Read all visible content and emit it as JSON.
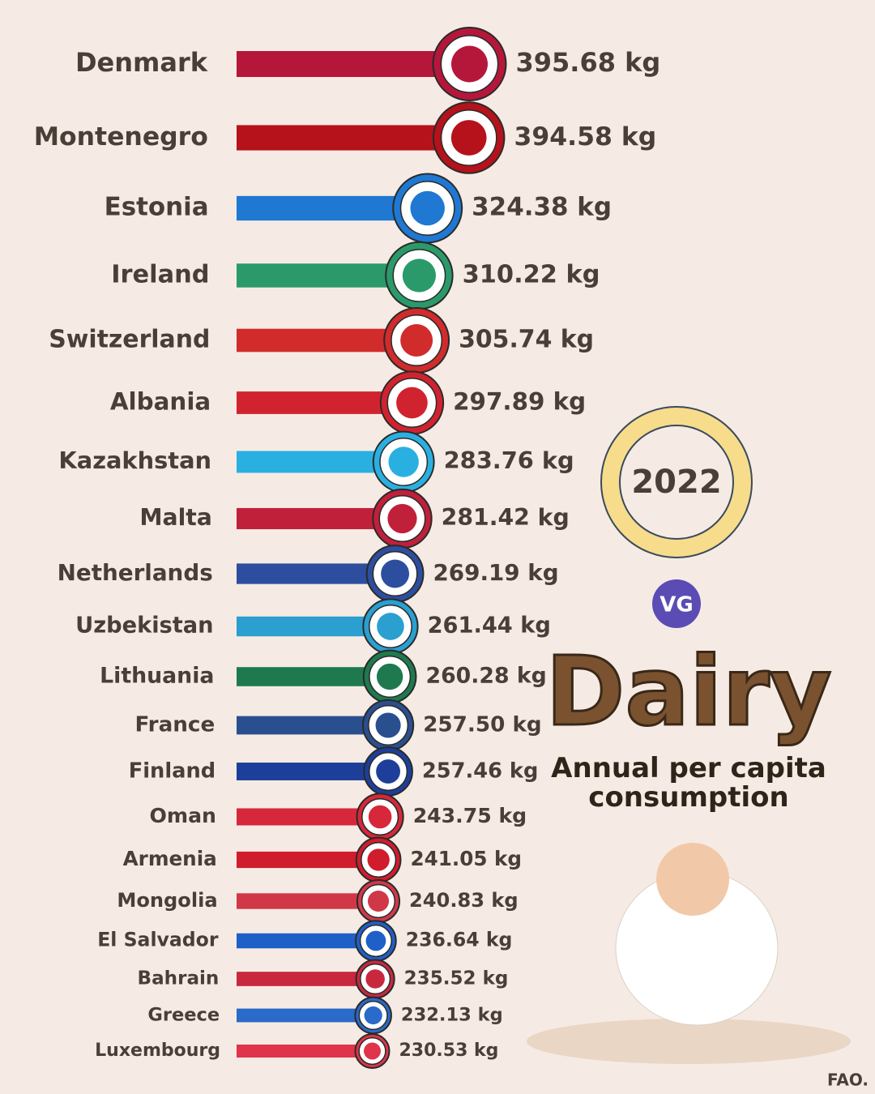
{
  "chart_data": {
    "type": "bar",
    "orientation": "horizontal",
    "title": "Dairy",
    "subtitle": "Annual per capita consumption",
    "year": "2022",
    "logo": "VG",
    "source": "FAO.",
    "categories": [
      "Denmark",
      "Montenegro",
      "Estonia",
      "Ireland",
      "Switzerland",
      "Albania",
      "Kazakhstan",
      "Malta",
      "Netherlands",
      "Uzbekistan",
      "Lithuania",
      "France",
      "Finland",
      "Oman",
      "Armenia",
      "Mongolia",
      "El Salvador",
      "Bahrain",
      "Greece",
      "Luxembourg"
    ],
    "values": [
      395.68,
      394.58,
      324.38,
      310.22,
      305.74,
      297.89,
      283.76,
      281.42,
      269.19,
      261.44,
      260.28,
      257.5,
      257.46,
      243.75,
      241.05,
      240.83,
      236.64,
      235.52,
      232.13,
      230.53
    ],
    "value_labels": [
      "395.68 kg",
      "394.58 kg",
      "324.38 kg",
      "310.22 kg",
      "305.74 kg",
      "297.89 kg",
      "283.76 kg",
      "281.42 kg",
      "269.19 kg",
      "261.44 kg",
      "260.28 kg",
      "257.50 kg",
      "257.46 kg",
      "243.75 kg",
      "241.05 kg",
      "240.83 kg",
      "236.64 kg",
      "235.52 kg",
      "232.13 kg",
      "230.53 kg"
    ],
    "colors": [
      "#b5173a",
      "#b5121b",
      "#1f78d1",
      "#2a9a6a",
      "#d12b2b",
      "#d1232f",
      "#2ab0e0",
      "#c0203a",
      "#2d4e9e",
      "#2a9fd0",
      "#1e7a4e",
      "#2a4f8f",
      "#1d3f9a",
      "#d6283a",
      "#d01c2c",
      "#d03848",
      "#1f5fc8",
      "#c8283e",
      "#2a6ac8",
      "#e0344a"
    ]
  }
}
